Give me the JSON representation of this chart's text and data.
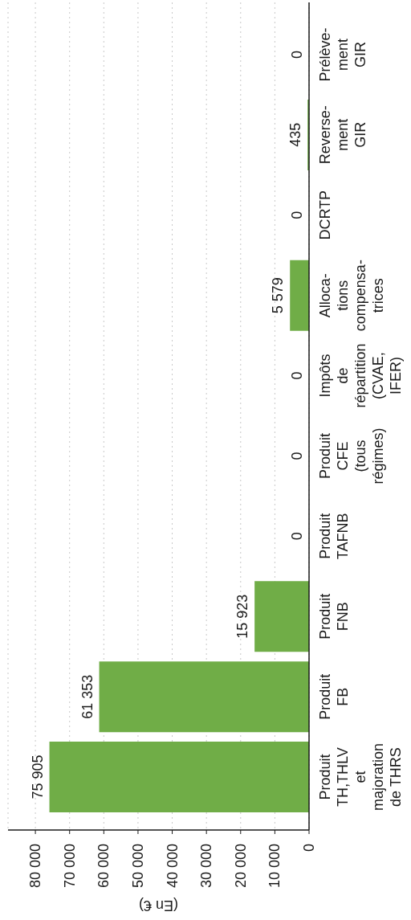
{
  "chart_data": {
    "type": "bar",
    "orientation": "horizontal",
    "xlabel": "(En €)",
    "categories": [
      "Prélève-\nment\nGIR",
      "Reverse-\nment\nGIR",
      "DCRTP",
      "Alloca-\ntions\ncompensa-\ntrices",
      "Impôts\nde\nrépartition\n(CVAE,\nIFER)",
      "Produit\nCFE\n(tous\nrégimes)",
      "Produit\nTAFNB",
      "Produit\nFNB",
      "Produit\nFB",
      "Produit\nTH,THLV\net\nmajoration\nde THRS"
    ],
    "values": [
      0,
      435,
      0,
      5579,
      0,
      0,
      0,
      15923,
      61353,
      75905
    ],
    "value_labels": [
      "0",
      "435",
      "0",
      "5 579",
      "0",
      "0",
      "0",
      "15 923",
      "61 353",
      "75 905"
    ],
    "color": "#70ad47",
    "xlim": [
      88000,
      0
    ],
    "xticks": [
      {
        "value": 80000,
        "label": "80 000"
      },
      {
        "value": 70000,
        "label": "70 000"
      },
      {
        "value": 60000,
        "label": "60 000"
      },
      {
        "value": 50000,
        "label": "50 000"
      },
      {
        "value": 40000,
        "label": "40 000"
      },
      {
        "value": 30000,
        "label": "30 000"
      },
      {
        "value": 20000,
        "label": "20 000"
      },
      {
        "value": 10000,
        "label": "10 000"
      },
      0
    ],
    "grid": "x"
  }
}
